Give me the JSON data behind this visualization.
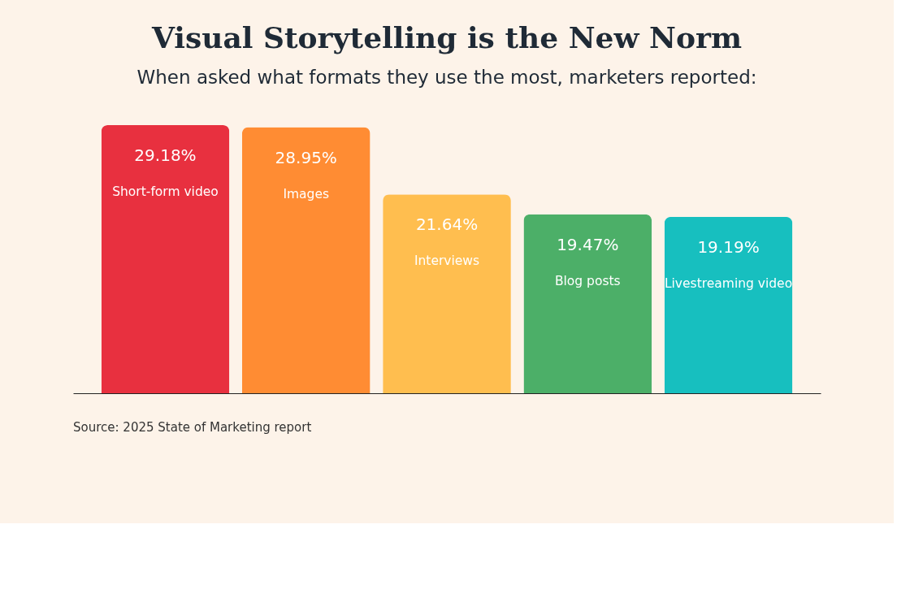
{
  "chart_data": {
    "type": "bar",
    "title": "Visual Storytelling is the New Norm",
    "subtitle": "When asked what formats they use the most, marketers reported:",
    "categories": [
      "Short-form video",
      "Images",
      "Interviews",
      "Blog posts",
      "Livestreaming video"
    ],
    "values": [
      29.18,
      28.95,
      21.64,
      19.47,
      19.19
    ],
    "colors": [
      "#e8303f",
      "#ff8c33",
      "#ffbe4f",
      "#4caf68",
      "#17bfbf"
    ],
    "value_labels": [
      "29.18%",
      "28.95%",
      "21.64%",
      "19.47%",
      "19.19%"
    ],
    "annotations": [
      "Source: 2025 State of Marketing report"
    ]
  }
}
